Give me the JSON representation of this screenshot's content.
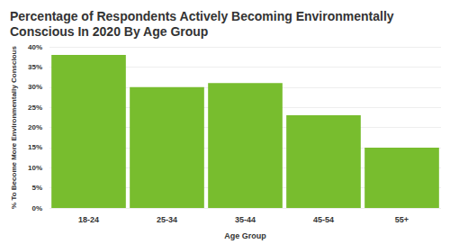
{
  "chart_data": {
    "type": "bar",
    "title": "Percentage of Respondents Actively Becoming Environmentally Conscious In 2020 By Age Group",
    "x_label": "Age Group",
    "y_label": "% To Become More Environmentally Conscious",
    "categories": [
      "18-24",
      "25-34",
      "35-44",
      "45-54",
      "55+"
    ],
    "values": [
      38,
      30,
      31,
      23,
      15
    ],
    "color": "#78bd2e",
    "ylim": [
      0,
      40
    ],
    "yticks": [
      {
        "value": 0,
        "label": "0%"
      },
      {
        "value": 5,
        "label": "5%"
      },
      {
        "value": 10,
        "label": "10%"
      },
      {
        "value": 15,
        "label": "15%"
      },
      {
        "value": 20,
        "label": "20%"
      },
      {
        "value": 25,
        "label": "25%"
      },
      {
        "value": 30,
        "label": "30%"
      },
      {
        "value": 35,
        "label": "35%"
      },
      {
        "value": 40,
        "label": "40%"
      }
    ],
    "grid": true
  }
}
